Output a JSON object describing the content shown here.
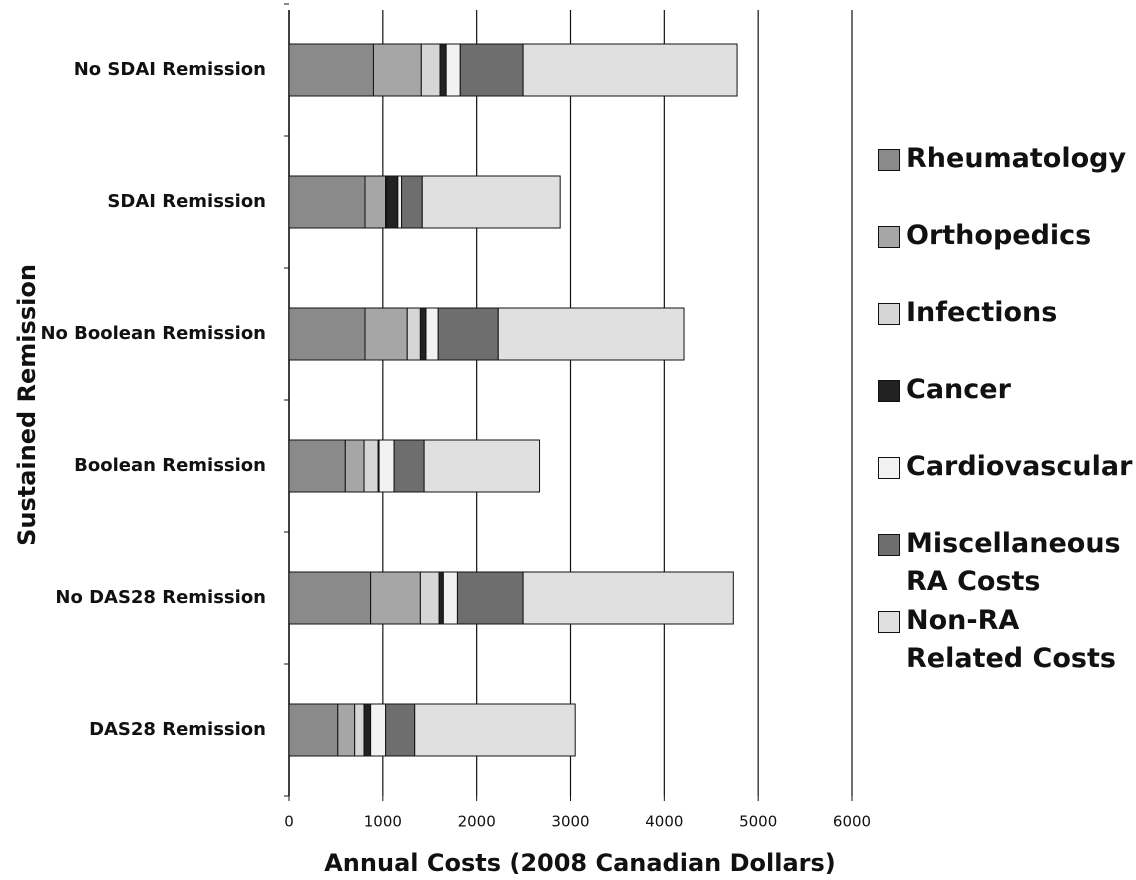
{
  "chart_data": {
    "type": "stacked_barh",
    "xlabel": "Annual Costs (2008 Canadian Dollars)",
    "ylabel": "Sustained Remission",
    "categories": [
      "No SDAI Remission",
      "SDAI Remission",
      "No Boolean Remission",
      "Boolean Remission",
      "No DAS28 Remission",
      "DAS28 Remission"
    ],
    "series": [
      {
        "name": "Rheumatology",
        "color": "#8a8a8a",
        "values": [
          900,
          810,
          810,
          600,
          870,
          520
        ]
      },
      {
        "name": "Orthopedics",
        "color": "#a6a6a6",
        "values": [
          510,
          220,
          450,
          200,
          530,
          180
        ]
      },
      {
        "name": "Infections",
        "color": "#d6d6d6",
        "values": [
          200,
          10,
          140,
          150,
          200,
          100
        ]
      },
      {
        "name": "Cancer",
        "color": "#222222",
        "values": [
          65,
          120,
          60,
          10,
          45,
          70
        ]
      },
      {
        "name": "Cardiovascular",
        "color": "#f2f2f2",
        "values": [
          150,
          40,
          130,
          160,
          150,
          160
        ]
      },
      {
        "name": "Miscellaneous RA Costs",
        "color": "#6e6e6e",
        "values": [
          670,
          220,
          640,
          320,
          700,
          310
        ]
      },
      {
        "name": "Non-RA Related Costs",
        "color": "#e0e0e0",
        "values": [
          2280,
          1470,
          1980,
          1230,
          2240,
          1710
        ]
      }
    ],
    "xlim": [
      0,
      6000
    ],
    "xticks": [
      0,
      1000,
      2000,
      3000,
      4000,
      5000,
      6000
    ],
    "grid": true
  }
}
